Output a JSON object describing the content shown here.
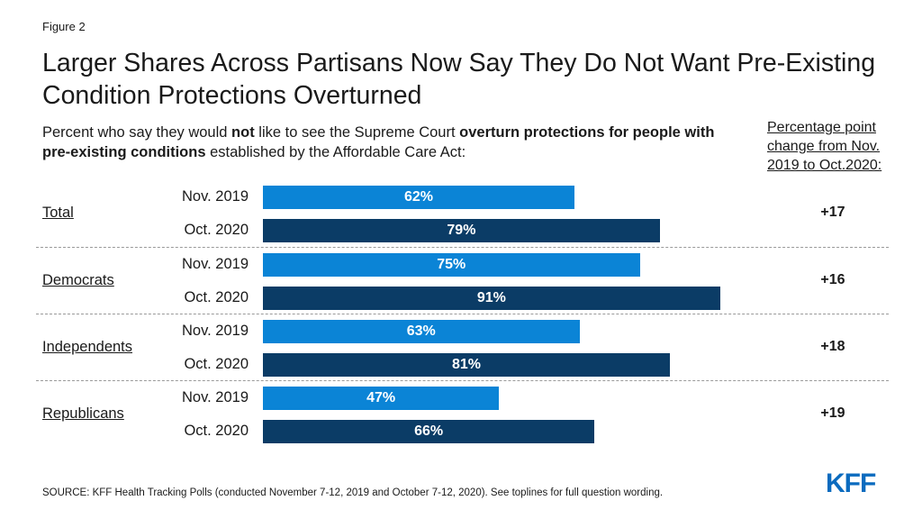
{
  "figure_label": "Figure 2",
  "title": "Larger Shares Across Partisans Now Say They Do Not Want Pre-Existing Condition Protections Overturned",
  "subtitle": {
    "p1": "Percent who say they would ",
    "b1": "not",
    "p2": " like to see the Supreme Court ",
    "b2": "overturn protections for people with pre-existing conditions",
    "p3": " established by the Affordable Care Act:"
  },
  "change_header": "Percentage point change from Nov. 2019 to Oct.2020:",
  "source": "SOURCE: KFF Health Tracking Polls (conducted November 7-12, 2019 and October 7-12, 2020). See toplines for full question wording.",
  "logo": "KFF",
  "colors": {
    "nov_2019": "#0b84d6",
    "oct_2020": "#0b3c66"
  },
  "chart_data": {
    "type": "bar",
    "orientation": "horizontal",
    "categories": [
      "Total",
      "Democrats",
      "Independents",
      "Republicans"
    ],
    "series": [
      {
        "name": "Nov. 2019",
        "values": [
          62,
          75,
          63,
          47
        ],
        "labels": [
          "62%",
          "75%",
          "63%",
          "47%"
        ]
      },
      {
        "name": "Oct. 2020",
        "values": [
          79,
          91,
          81,
          66
        ],
        "labels": [
          "79%",
          "91%",
          "81%",
          "66%"
        ]
      }
    ],
    "change": [
      "+17",
      "+16",
      "+18",
      "+19"
    ],
    "xlim": [
      0,
      100
    ]
  }
}
